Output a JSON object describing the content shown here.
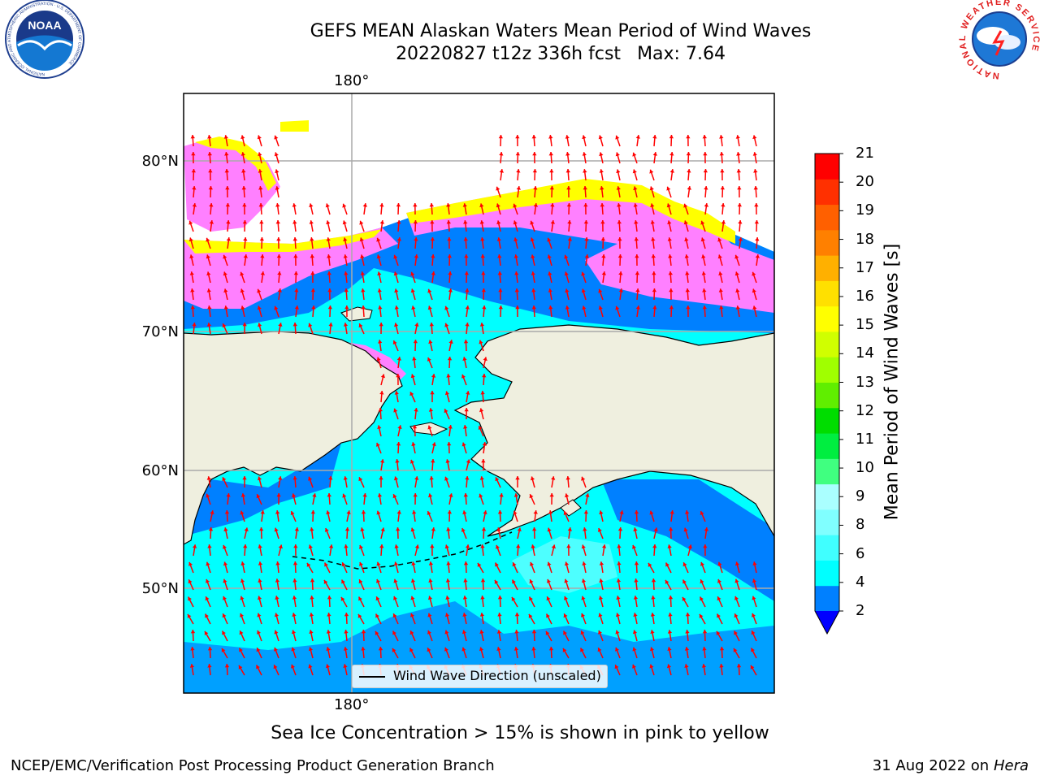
{
  "header": {
    "title_line1": "GEFS MEAN Alaskan Waters Mean Period of Wind Waves",
    "title_line2_run": "20220827 t12z 336h fcst",
    "title_line2_max": "Max: 7.64"
  },
  "map": {
    "lon_label_top": "180°",
    "lon_label_bottom": "180°",
    "lat_labels": [
      "80°N",
      "70°N",
      "60°N",
      "50°N"
    ],
    "legend_label": "Wind Wave Direction (unscaled)",
    "ice_note": "Sea Ice Concentration > 15% is shown in pink to yellow",
    "colors": {
      "ocean_primary": "#00ffff",
      "ocean_secondary": "#0080ff",
      "land": "#efefdf",
      "arrow": "#ff0000",
      "ice_outer": "#ff80ff",
      "ice_mid": "#ffa0ff",
      "ice_edge": "#ffff00"
    }
  },
  "colorbar": {
    "title": "Mean Period of Wind Waves [s]",
    "ticks": [
      "21",
      "20",
      "19",
      "18",
      "17",
      "16",
      "15",
      "14",
      "13",
      "12",
      "11",
      "10",
      "9",
      "8",
      "6",
      "4",
      "2"
    ],
    "colors_bottom_to_top": [
      "#0080ff",
      "#00ffff",
      "#40ffff",
      "#80ffff",
      "#aaffff",
      "#40ff80",
      "#00ee40",
      "#00dd00",
      "#60ee00",
      "#a0ff00",
      "#d0ff00",
      "#ffff00",
      "#ffe000",
      "#ffb000",
      "#ff8000",
      "#ff6000",
      "#ff3000",
      "#ff0000"
    ],
    "extend_color": "#0000ff"
  },
  "footer": {
    "credit": "NCEP/EMC/Verification Post Processing Product Generation Branch",
    "date_text": "31 Aug 2022 on",
    "machine": "Hera"
  },
  "logos": {
    "left_text": "NOAA",
    "left_ring_text": "NATIONAL OCEANIC AND ATMOSPHERIC ADMINISTRATION · U.S. DEPARTMENT OF COMMERCE",
    "right_ring_text": "NATIONAL WEATHER SERVICE"
  }
}
